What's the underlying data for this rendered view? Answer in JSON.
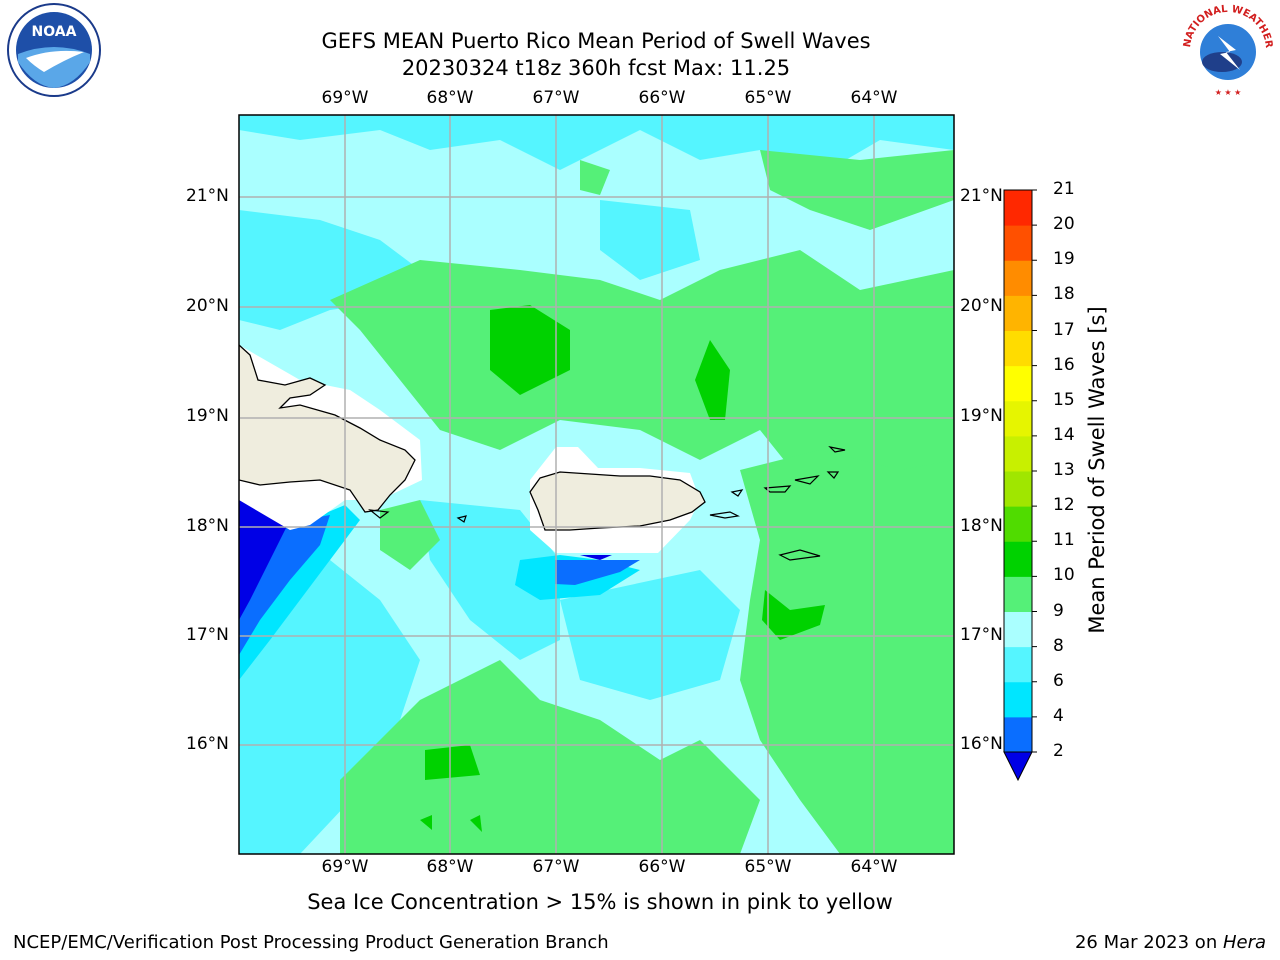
{
  "header": {
    "title_line1": "GEFS MEAN Puerto Rico Mean Period of Swell Waves",
    "title_line2": "20230324 t18z 360h fcst   Max: 11.25"
  },
  "logos": {
    "noaa_text": "NOAA",
    "nws_text": "NATIONAL WEATHER SERVICE"
  },
  "map": {
    "lon_labels": [
      "69°W",
      "68°W",
      "67°W",
      "66°W",
      "65°W",
      "64°W"
    ],
    "lat_labels": [
      "21°N",
      "20°N",
      "19°N",
      "18°N",
      "17°N",
      "16°N"
    ]
  },
  "colorbar": {
    "label": "Mean Period of Swell Waves [s]",
    "ticks": [
      "2",
      "4",
      "6",
      "8",
      "9",
      "10",
      "11",
      "12",
      "13",
      "14",
      "15",
      "16",
      "17",
      "18",
      "19",
      "20",
      "21"
    ],
    "colors": [
      "#0000e6",
      "#0a6eff",
      "#00e6ff",
      "#55f5ff",
      "#aaffff",
      "#55f078",
      "#00d200",
      "#50dc00",
      "#a0e600",
      "#c8f000",
      "#e6f500",
      "#ffff00",
      "#ffdc00",
      "#ffb400",
      "#ff8c00",
      "#ff5000",
      "#ff2800",
      "#ff0000"
    ]
  },
  "caption": "Sea Ice Concentration > 15% is shown in pink to yellow",
  "footer": {
    "left": "NCEP/EMC/Verification Post Processing Product Generation Branch",
    "right_date": "26 Mar 2023 on ",
    "right_host": "Hera"
  }
}
